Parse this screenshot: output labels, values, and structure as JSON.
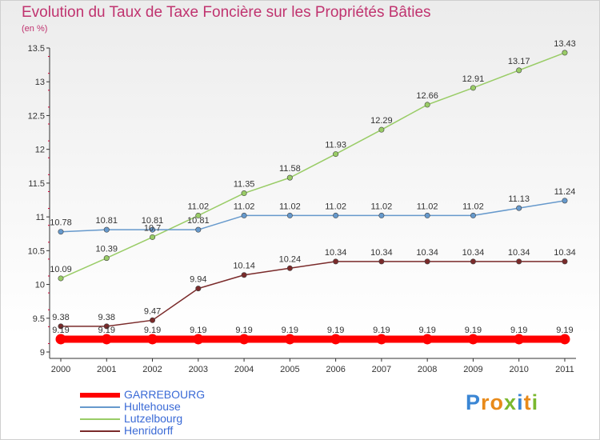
{
  "chart_data": {
    "type": "line",
    "title": "Evolution du Taux de Taxe Foncière sur les Propriétés Bâties",
    "unit_label": "(en %)",
    "x": [
      "2000",
      "2001",
      "2002",
      "2003",
      "2004",
      "2005",
      "2006",
      "2007",
      "2008",
      "2009",
      "2010",
      "2011"
    ],
    "ylim": [
      9,
      13.5
    ],
    "yticks": [
      "9",
      "9.5",
      "10",
      "10.5",
      "11",
      "11.5",
      "12",
      "12.5",
      "13",
      "13.5"
    ],
    "series": [
      {
        "name": "GARREBOURG",
        "color": "#ff0000",
        "values": [
          9.19,
          9.19,
          9.19,
          9.19,
          9.19,
          9.19,
          9.19,
          9.19,
          9.19,
          9.19,
          9.19,
          9.19
        ]
      },
      {
        "name": "Hultehouse",
        "color": "#6699cc",
        "values": [
          10.78,
          10.81,
          10.81,
          10.81,
          11.02,
          11.02,
          11.02,
          11.02,
          11.02,
          11.02,
          11.13,
          11.24
        ]
      },
      {
        "name": "Lutzelbourg",
        "color": "#99cc66",
        "values": [
          10.09,
          10.39,
          10.7,
          11.02,
          11.35,
          11.58,
          11.93,
          12.29,
          12.66,
          12.91,
          13.17,
          13.43
        ]
      },
      {
        "name": "Henridorff",
        "color": "#7a2a2a",
        "values": [
          9.38,
          9.38,
          9.47,
          9.94,
          10.14,
          10.24,
          10.34,
          10.34,
          10.34,
          10.34,
          10.34,
          10.34
        ]
      }
    ],
    "data_labels": {
      "GARREBOURG": [
        "9.19",
        "9.19",
        "9.19",
        "9.19",
        "9.19",
        "9.19",
        "9.19",
        "9.19",
        "9.19",
        "9.19",
        "9.19",
        "9.19"
      ],
      "Hultehouse": [
        "10.78",
        "10.81",
        "10.81",
        "10.81",
        "11.02",
        "11.02",
        "11.02",
        "11.02",
        "11.02",
        "11.02",
        "11.13",
        "11.24"
      ],
      "Lutzelbourg": [
        "10.09",
        "10.39",
        "10.7",
        "11.02",
        "11.35",
        "11.58",
        "11.93",
        "12.29",
        "12.66",
        "12.91",
        "13.17",
        "13.43"
      ],
      "Henridorff": [
        "9.38",
        "9.38",
        "9.47",
        "9.94",
        "10.14",
        "10.24",
        "10.34",
        "10.34",
        "10.34",
        "10.34",
        "10.34",
        "10.34"
      ]
    },
    "legend": [
      "GARREBOURG",
      "Hultehouse",
      "Lutzelbourg",
      "Henridorff"
    ],
    "legend_position": "bottom-left",
    "grid": false
  },
  "logo": {
    "letters": [
      "P",
      "r",
      "o",
      "x",
      "i",
      "t",
      "i"
    ],
    "colors": [
      "#3a86d4",
      "#e88a1a",
      "#e88a1a",
      "#7ab82e",
      "#3a86d4",
      "#e88a1a",
      "#7ab82e"
    ]
  }
}
